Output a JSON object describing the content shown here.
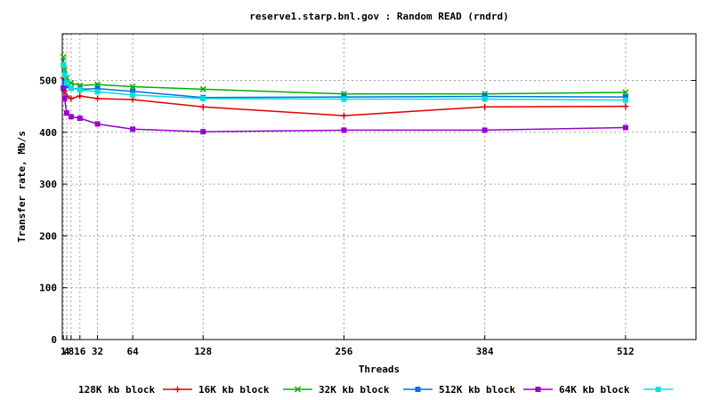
{
  "chart_data": {
    "type": "line",
    "title": "reserve1.starp.bnl.gov : Random READ (rndrd)",
    "xlabel": "Threads",
    "ylabel": "Transfer rate, Mb/s",
    "xlim": [
      0,
      576
    ],
    "ylim": [
      0,
      590
    ],
    "x_ticks": [
      1,
      4,
      8,
      16,
      32,
      64,
      128,
      256,
      384,
      512
    ],
    "x_tick_labels": [
      "1",
      "4",
      "8",
      "16",
      "32",
      "64",
      "128",
      "256",
      "384",
      "512"
    ],
    "y_ticks": [
      0,
      100,
      200,
      300,
      400,
      500
    ],
    "grid": true,
    "legend_position": "bottom",
    "x": [
      1,
      2,
      4,
      8,
      16,
      32,
      64,
      128,
      256,
      384,
      512
    ],
    "series": [
      {
        "name": "128K kb block",
        "color": "#e00000",
        "marker": "plus",
        "values": [
          505,
          480,
          470,
          465,
          470,
          465,
          463,
          449,
          432,
          449,
          450
        ]
      },
      {
        "name": "16K kb block",
        "color": "#00b000",
        "marker": "cross",
        "values": [
          545,
          520,
          505,
          495,
          490,
          492,
          488,
          483,
          474,
          474,
          477
        ]
      },
      {
        "name": "32K kb block",
        "color": "#0070e0",
        "marker": "square",
        "values": [
          485,
          495,
          490,
          485,
          483,
          484,
          479,
          467,
          468,
          469,
          468
        ]
      },
      {
        "name": "512K kb block",
        "color": "#9900cc",
        "marker": "square",
        "values": [
          485,
          465,
          437,
          430,
          427,
          416,
          406,
          401,
          404,
          404,
          409
        ]
      },
      {
        "name": "64K kb block",
        "color": "#00e0e0",
        "marker": "square",
        "values": [
          530,
          510,
          495,
          485,
          482,
          478,
          472,
          465,
          464,
          464,
          462
        ]
      }
    ]
  }
}
